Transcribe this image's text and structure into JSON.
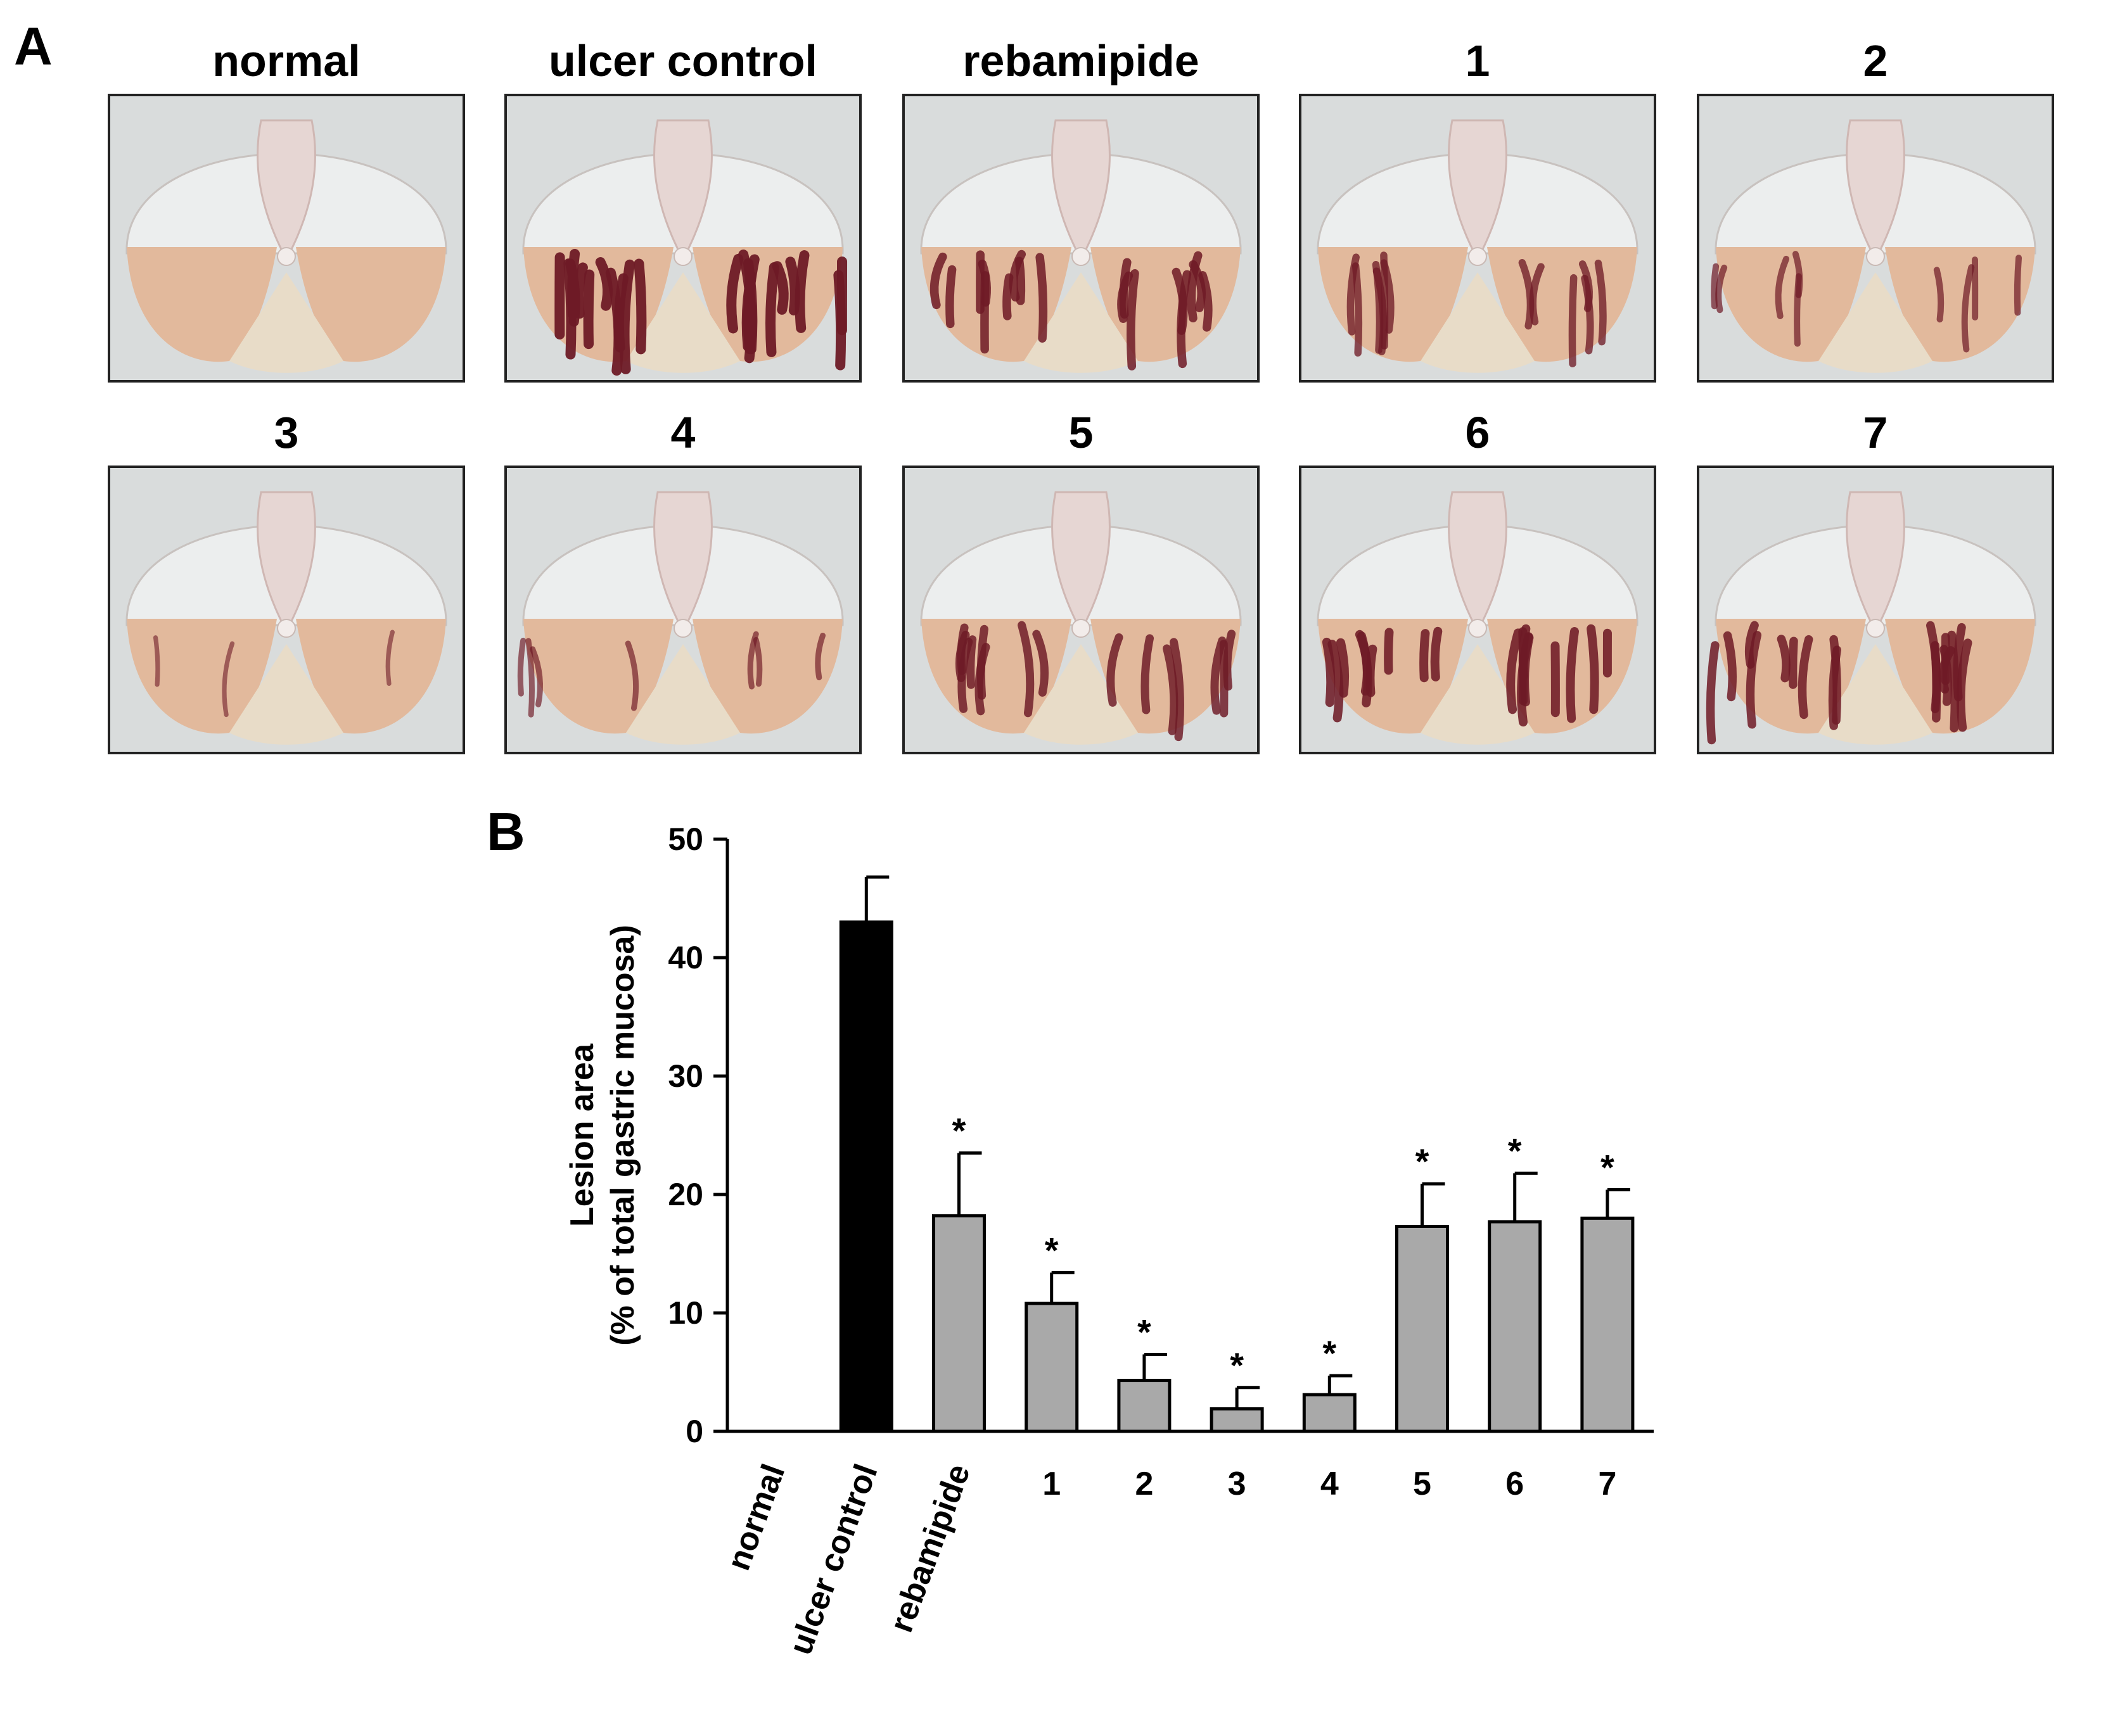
{
  "panel_a": {
    "letter": "A",
    "rows": [
      [
        {
          "label": "normal",
          "ulcer": 0.0
        },
        {
          "label": "ulcer control",
          "ulcer": 1.0
        },
        {
          "label": "rebamipide",
          "ulcer": 0.75
        },
        {
          "label": "1",
          "ulcer": 0.55
        },
        {
          "label": "2",
          "ulcer": 0.4
        }
      ],
      [
        {
          "label": "3",
          "ulcer": 0.12
        },
        {
          "label": "4",
          "ulcer": 0.3
        },
        {
          "label": "5",
          "ulcer": 0.7
        },
        {
          "label": "6",
          "ulcer": 0.8
        },
        {
          "label": "7",
          "ulcer": 0.75
        }
      ]
    ],
    "colors": {
      "background": "#d9dcdc",
      "membrane": "#eceeee",
      "mucosa": "#e2b99c",
      "lesion": "#6e1a26"
    }
  },
  "panel_b": {
    "letter": "B",
    "chart_data": {
      "type": "bar",
      "categories": [
        "normal",
        "ulcer control",
        "rebamipide",
        "1",
        "2",
        "3",
        "4",
        "5",
        "6",
        "7"
      ],
      "values": [
        0,
        43,
        18.2,
        10.8,
        4.3,
        1.9,
        3.1,
        17.3,
        17.7,
        18.0
      ],
      "errors": [
        0,
        3.8,
        5.3,
        2.6,
        2.2,
        1.8,
        1.6,
        3.6,
        4.1,
        2.4
      ],
      "significant": [
        false,
        false,
        true,
        true,
        true,
        true,
        true,
        true,
        true,
        true
      ],
      "significance_mark": "*",
      "bar_colors": [
        "#000000",
        "#000000",
        "#a9a9a9",
        "#a9a9a9",
        "#a9a9a9",
        "#a9a9a9",
        "#a9a9a9",
        "#a9a9a9",
        "#a9a9a9",
        "#a9a9a9"
      ],
      "ylabel_line1": "Lesion area",
      "ylabel_line2": "(% of total gastric mucosa)",
      "ylim": [
        0,
        50
      ],
      "yticks": [
        "0",
        "10",
        "20",
        "30",
        "40",
        "50"
      ],
      "grid": false,
      "legend": false
    }
  }
}
